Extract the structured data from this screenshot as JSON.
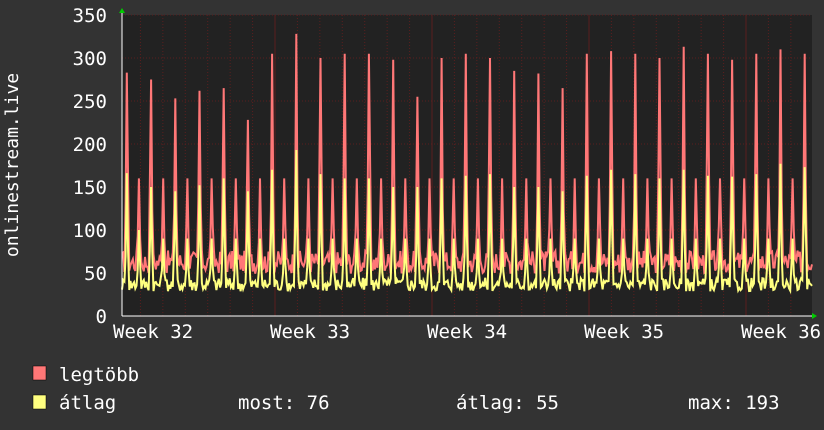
{
  "chart_data": {
    "type": "area",
    "ylabel": "onlinestream.live",
    "ylim": [
      0,
      350
    ],
    "yticks": [
      0,
      50,
      100,
      150,
      200,
      250,
      300,
      350
    ],
    "x_tick_labels": [
      "Week 32",
      "Week 33",
      "Week 34",
      "Week 35",
      "Week 36"
    ],
    "grid": true,
    "background": "#222222",
    "grid_color": "#5a1f1f",
    "series": [
      {
        "name": "legtöbb",
        "color": "#ff7777",
        "peaks": [
          283,
          160,
          275,
          160,
          253,
          160,
          262,
          160,
          265,
          160,
          228,
          160,
          305,
          160,
          328,
          160,
          300,
          160,
          305,
          160,
          305,
          160,
          298,
          160,
          255,
          160,
          300,
          160,
          305,
          160,
          300,
          160,
          285,
          160,
          282,
          160,
          265,
          160,
          305,
          160,
          308,
          160,
          305,
          160,
          300,
          160,
          313,
          160,
          305,
          160,
          298,
          160,
          305,
          160,
          310,
          160,
          305
        ],
        "baseline": 60
      },
      {
        "name": "átlag",
        "color": "#ffff80",
        "peaks": [
          166,
          100,
          150,
          90,
          145,
          90,
          152,
          90,
          160,
          90,
          145,
          90,
          170,
          90,
          193,
          90,
          165,
          90,
          160,
          90,
          160,
          90,
          150,
          90,
          150,
          90,
          160,
          90,
          163,
          90,
          165,
          90,
          150,
          90,
          150,
          90,
          145,
          90,
          163,
          90,
          170,
          90,
          165,
          90,
          160,
          90,
          170,
          90,
          163,
          90,
          162,
          90,
          165,
          90,
          177,
          90,
          173
        ],
        "baseline": 35
      }
    ]
  },
  "legend": {
    "items": [
      {
        "label": "legtöbb",
        "color": "#ff7777"
      },
      {
        "label": "átlag",
        "color": "#ffff80"
      }
    ],
    "stats": {
      "most": "most: 76",
      "atlag": "átlag: 55",
      "max": "max: 193"
    }
  }
}
